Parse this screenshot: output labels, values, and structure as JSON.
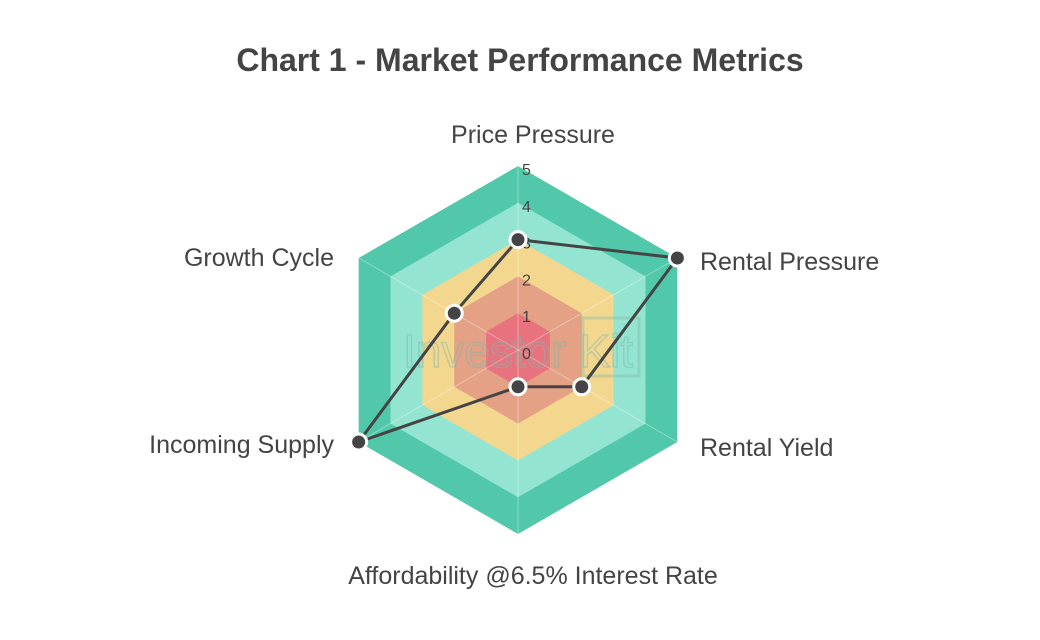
{
  "chart_data": {
    "type": "radar",
    "title": "Chart 1 - Market Performance Metrics",
    "categories": [
      "Price Pressure",
      "Rental Pressure",
      "Rental Yield",
      "Affordability @6.5% Interest Rate",
      "Incoming Supply",
      "Growth Cycle"
    ],
    "values": [
      3,
      5,
      2,
      1,
      5,
      2
    ],
    "rlim": [
      0,
      5
    ],
    "ticks": [
      "0",
      "1",
      "2",
      "3",
      "4",
      "5"
    ],
    "band_colors": [
      "#e8737f",
      "#e4a185",
      "#f4d78f",
      "#94e4d2",
      "#52c8aa"
    ],
    "line_color": "#444444",
    "grid": true,
    "watermark": "Investor Kit"
  }
}
